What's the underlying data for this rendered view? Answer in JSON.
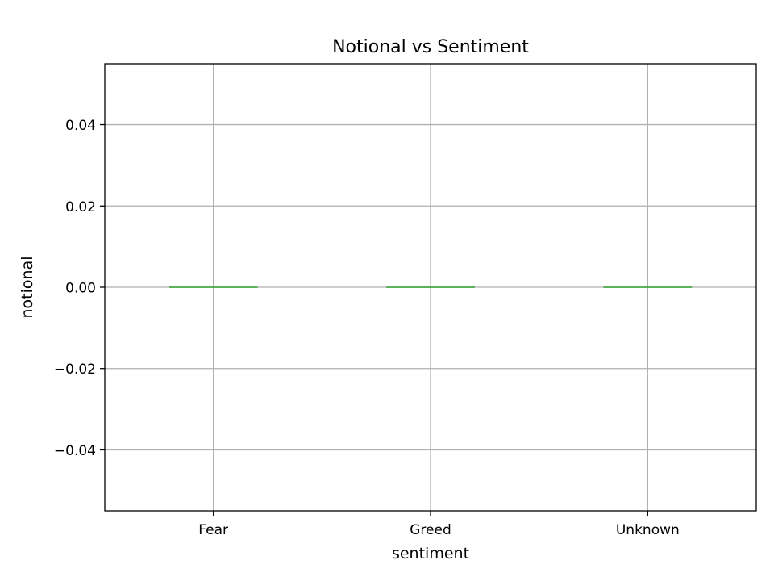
{
  "chart_data": {
    "type": "box",
    "title": "Notional vs Sentiment",
    "xlabel": "sentiment",
    "ylabel": "notional",
    "categories": [
      "Fear",
      "Greed",
      "Unknown"
    ],
    "boxes": [
      {
        "category": "Fear",
        "min": 0,
        "q1": 0,
        "median": 0,
        "q3": 0,
        "max": 0
      },
      {
        "category": "Greed",
        "min": 0,
        "q1": 0,
        "median": 0,
        "q3": 0,
        "max": 0
      },
      {
        "category": "Unknown",
        "min": 0,
        "q1": 0,
        "median": 0,
        "q3": 0,
        "max": 0
      }
    ],
    "ylim": [
      -0.055,
      0.055
    ],
    "yticks": [
      -0.04,
      -0.02,
      0.0,
      0.02,
      0.04
    ],
    "ytick_labels": [
      "−0.04",
      "−0.02",
      "0.00",
      "0.02",
      "0.04"
    ],
    "grid": true,
    "colors": {
      "median": "#2ca02c",
      "box": "#1f77b4",
      "grid": "#b0b0b0",
      "axes": "#000000"
    }
  }
}
